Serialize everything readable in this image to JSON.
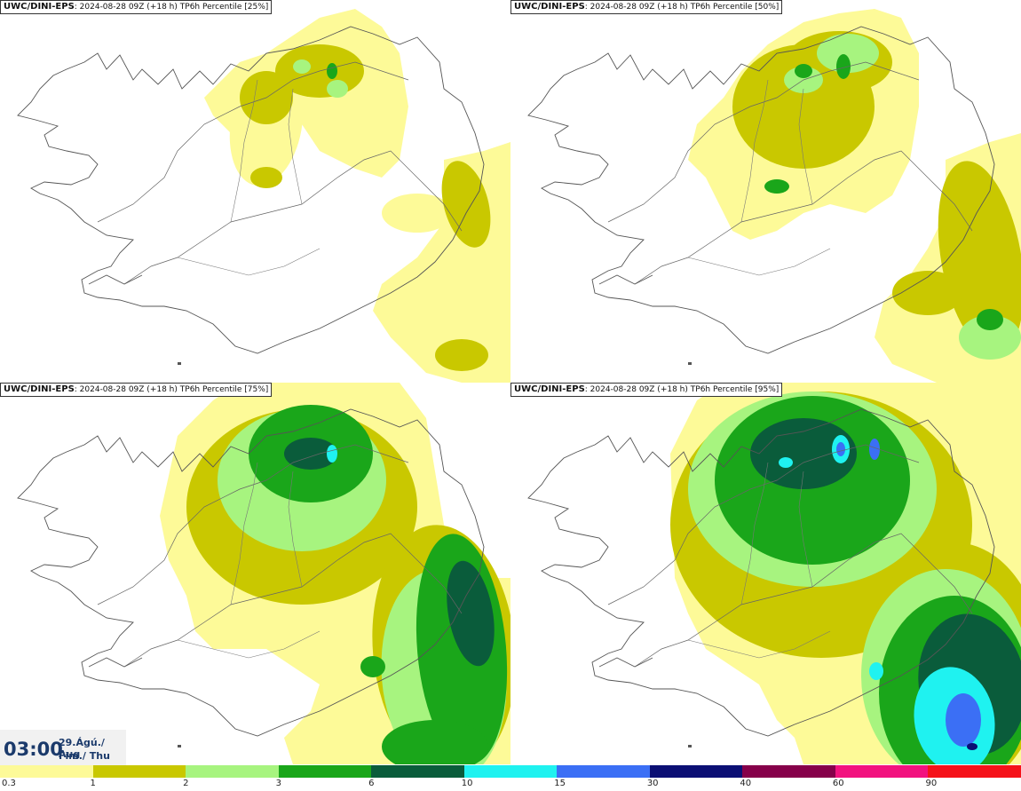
{
  "panels": [
    {
      "model": "UWC/DINI-EPS",
      "run": ": 2024-08-28 09Z (+18 h)",
      "label": "TP6h Percentile [25%]"
    },
    {
      "model": "UWC/DINI-EPS",
      "run": ": 2024-08-28 09Z (+18 h)",
      "label": "TP6h Percentile [50%]"
    },
    {
      "model": "UWC/DINI-EPS",
      "run": ": 2024-08-28 09Z (+18 h)",
      "label": "TP6h Percentile [75%]"
    },
    {
      "model": "UWC/DINI-EPS",
      "run": ": 2024-08-28 09Z (+18 h)",
      "label": "TP6h Percentile [95%]"
    }
  ],
  "valid_time": {
    "time": "03:00",
    "date": "29.Ágú./ Aug",
    "weekday": "Fim./ Thu"
  },
  "legend": {
    "ticks": [
      "0.3",
      "1",
      "2",
      "3",
      "6",
      "10",
      "15",
      "30",
      "40",
      "60",
      "90"
    ],
    "colors": [
      "#fdfa98",
      "#c9c800",
      "#a7f47f",
      "#1aa61a",
      "#0a5c3b",
      "#1ff2f0",
      "#3b6ff5",
      "#0b0f74",
      "#86004a",
      "#f2127f",
      "#f5121a"
    ]
  }
}
